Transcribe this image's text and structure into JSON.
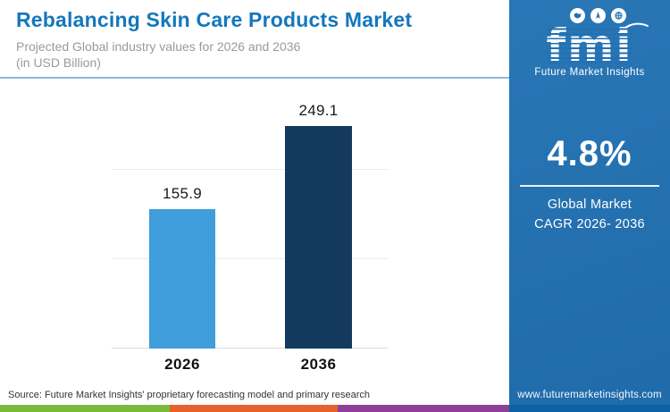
{
  "header": {
    "title": "Rebalancing Skin Care Products Market",
    "subtitle_line1": "Projected Global industry values for 2026 and 2036",
    "subtitle_line2": "(in USD Billion)"
  },
  "chart_data": {
    "type": "bar",
    "title": "Rebalancing Skin Care Products Market",
    "subtitle": "Projected Global industry values for 2026 and 2036 (in USD Billion)",
    "categories": [
      "2026",
      "2036"
    ],
    "values": [
      155.9,
      249.1
    ],
    "xlabel": "",
    "ylabel": "",
    "ylim": [
      0,
      300
    ],
    "gridlines": [
      100,
      200
    ],
    "grid": true,
    "legend": false,
    "bar_colors": [
      "#3f9edb",
      "#14395f"
    ]
  },
  "sidebar": {
    "logo": {
      "icons": [
        "map-icon",
        "compass-icon",
        "globe-icon"
      ],
      "text": "fmi",
      "subtext": "Future Market Insights"
    },
    "cagr": {
      "value": "4.8%",
      "label_line1": "Global Market",
      "label_line2": "CAGR 2026- 2036"
    },
    "website": "www.futuremarketinsights.com"
  },
  "footer": {
    "source": "Source: Future Market Insights' proprietary forecasting model and primary research",
    "stripe_colors": [
      "#7cb83e",
      "#e8602a",
      "#8e3f97",
      "#0d61a5"
    ]
  },
  "colors": {
    "accent_blue": "#1477bd",
    "sidebar_blue": "#2171b3",
    "bar_2026": "#3f9edb",
    "bar_2036": "#14395f"
  }
}
